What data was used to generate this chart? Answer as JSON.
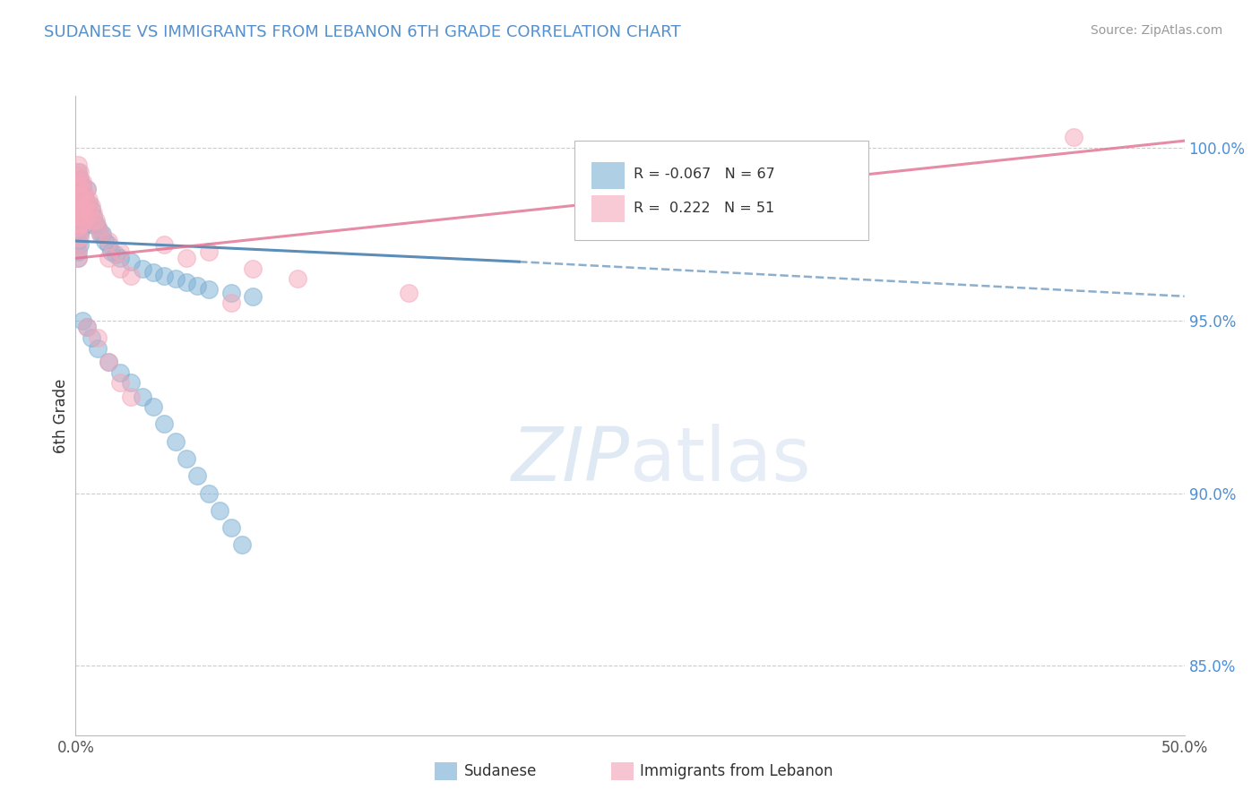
{
  "title": "SUDANESE VS IMMIGRANTS FROM LEBANON 6TH GRADE CORRELATION CHART",
  "source": "Source: ZipAtlas.com",
  "ylabel": "6th Grade",
  "legend": {
    "blue_r": -0.067,
    "blue_n": 67,
    "pink_r": 0.222,
    "pink_n": 51
  },
  "yticks": [
    100.0,
    95.0,
    90.0,
    85.0
  ],
  "ytick_labels": [
    "100.0%",
    "95.0%",
    "90.0%",
    "85.0%"
  ],
  "xlim": [
    0.0,
    0.5
  ],
  "ylim": [
    83.0,
    101.5
  ],
  "blue_color": "#7bafd4",
  "pink_color": "#f4a7b9",
  "blue_line_color": "#5b8db8",
  "pink_line_color": "#e07090",
  "blue_scatter": [
    [
      0.001,
      99.3
    ],
    [
      0.001,
      99.0
    ],
    [
      0.001,
      98.8
    ],
    [
      0.001,
      98.5
    ],
    [
      0.001,
      98.2
    ],
    [
      0.001,
      97.9
    ],
    [
      0.001,
      97.6
    ],
    [
      0.001,
      97.3
    ],
    [
      0.001,
      97.0
    ],
    [
      0.001,
      96.8
    ],
    [
      0.002,
      99.1
    ],
    [
      0.002,
      98.7
    ],
    [
      0.002,
      98.3
    ],
    [
      0.002,
      97.9
    ],
    [
      0.002,
      97.5
    ],
    [
      0.002,
      97.2
    ],
    [
      0.003,
      98.9
    ],
    [
      0.003,
      98.5
    ],
    [
      0.003,
      98.1
    ],
    [
      0.003,
      97.7
    ],
    [
      0.004,
      98.6
    ],
    [
      0.004,
      98.2
    ],
    [
      0.004,
      97.8
    ],
    [
      0.005,
      98.8
    ],
    [
      0.005,
      98.3
    ],
    [
      0.005,
      97.9
    ],
    [
      0.006,
      98.4
    ],
    [
      0.006,
      98.0
    ],
    [
      0.007,
      98.2
    ],
    [
      0.007,
      97.8
    ],
    [
      0.008,
      98.0
    ],
    [
      0.009,
      97.8
    ],
    [
      0.01,
      97.7
    ],
    [
      0.011,
      97.5
    ],
    [
      0.012,
      97.5
    ],
    [
      0.013,
      97.3
    ],
    [
      0.015,
      97.2
    ],
    [
      0.016,
      97.0
    ],
    [
      0.018,
      96.9
    ],
    [
      0.02,
      96.8
    ],
    [
      0.025,
      96.7
    ],
    [
      0.03,
      96.5
    ],
    [
      0.035,
      96.4
    ],
    [
      0.04,
      96.3
    ],
    [
      0.045,
      96.2
    ],
    [
      0.05,
      96.1
    ],
    [
      0.055,
      96.0
    ],
    [
      0.06,
      95.9
    ],
    [
      0.07,
      95.8
    ],
    [
      0.08,
      95.7
    ],
    [
      0.003,
      95.0
    ],
    [
      0.005,
      94.8
    ],
    [
      0.007,
      94.5
    ],
    [
      0.01,
      94.2
    ],
    [
      0.015,
      93.8
    ],
    [
      0.02,
      93.5
    ],
    [
      0.025,
      93.2
    ],
    [
      0.03,
      92.8
    ],
    [
      0.035,
      92.5
    ],
    [
      0.04,
      92.0
    ],
    [
      0.045,
      91.5
    ],
    [
      0.05,
      91.0
    ],
    [
      0.055,
      90.5
    ],
    [
      0.06,
      90.0
    ],
    [
      0.065,
      89.5
    ],
    [
      0.07,
      89.0
    ],
    [
      0.075,
      88.5
    ]
  ],
  "pink_scatter": [
    [
      0.001,
      99.5
    ],
    [
      0.001,
      99.2
    ],
    [
      0.001,
      98.9
    ],
    [
      0.001,
      98.6
    ],
    [
      0.001,
      98.3
    ],
    [
      0.001,
      98.0
    ],
    [
      0.001,
      97.7
    ],
    [
      0.001,
      97.4
    ],
    [
      0.001,
      97.1
    ],
    [
      0.001,
      96.8
    ],
    [
      0.002,
      99.3
    ],
    [
      0.002,
      99.0
    ],
    [
      0.002,
      98.6
    ],
    [
      0.002,
      98.2
    ],
    [
      0.002,
      97.8
    ],
    [
      0.002,
      97.4
    ],
    [
      0.003,
      99.0
    ],
    [
      0.003,
      98.6
    ],
    [
      0.003,
      98.2
    ],
    [
      0.003,
      97.8
    ],
    [
      0.004,
      98.7
    ],
    [
      0.004,
      98.3
    ],
    [
      0.004,
      97.9
    ],
    [
      0.005,
      98.8
    ],
    [
      0.005,
      98.4
    ],
    [
      0.006,
      98.5
    ],
    [
      0.006,
      98.1
    ],
    [
      0.007,
      98.3
    ],
    [
      0.007,
      97.9
    ],
    [
      0.008,
      98.1
    ],
    [
      0.009,
      97.9
    ],
    [
      0.01,
      97.7
    ],
    [
      0.011,
      97.5
    ],
    [
      0.015,
      97.3
    ],
    [
      0.02,
      97.0
    ],
    [
      0.015,
      96.8
    ],
    [
      0.02,
      96.5
    ],
    [
      0.025,
      96.3
    ],
    [
      0.04,
      97.2
    ],
    [
      0.05,
      96.8
    ],
    [
      0.06,
      97.0
    ],
    [
      0.08,
      96.5
    ],
    [
      0.1,
      96.2
    ],
    [
      0.005,
      94.8
    ],
    [
      0.01,
      94.5
    ],
    [
      0.015,
      93.8
    ],
    [
      0.02,
      93.2
    ],
    [
      0.025,
      92.8
    ],
    [
      0.07,
      95.5
    ],
    [
      0.45,
      100.3
    ],
    [
      0.15,
      95.8
    ]
  ],
  "blue_trendline_solid": [
    [
      0.0,
      97.3
    ],
    [
      0.2,
      96.7
    ]
  ],
  "blue_trendline_dashed": [
    [
      0.2,
      96.7
    ],
    [
      0.5,
      95.7
    ]
  ],
  "pink_trendline": [
    [
      0.0,
      96.8
    ],
    [
      0.5,
      100.2
    ]
  ]
}
